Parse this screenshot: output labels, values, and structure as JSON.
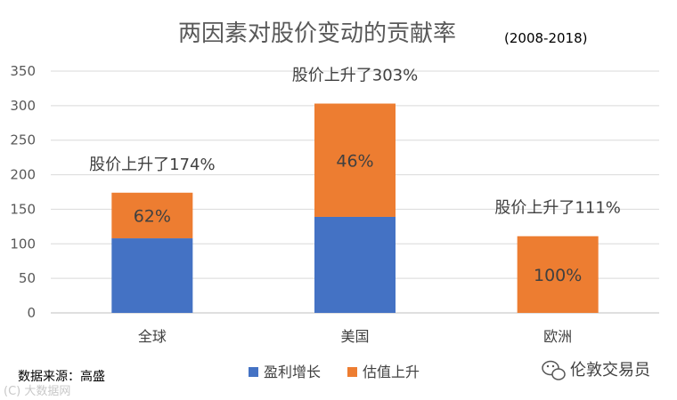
{
  "chart_data": {
    "type": "bar",
    "stacked": true,
    "title": "两因素对股价变动的贡献率",
    "subtitle": "(2008-2018)",
    "categories": [
      "全球",
      "美国",
      "欧洲"
    ],
    "series": [
      {
        "name": "盈利增长",
        "color": "#4472C4",
        "values": [
          108,
          139,
          0
        ]
      },
      {
        "name": "估值上升",
        "color": "#ED7D31",
        "values": [
          66,
          164,
          111
        ]
      }
    ],
    "segment_labels": [
      "62%",
      "46%",
      "100%"
    ],
    "annotations": [
      "股价上升了174%",
      "股价上升了303%",
      "股价上升了111%"
    ],
    "ylim": [
      0,
      350
    ],
    "yticks": [
      0,
      50,
      100,
      150,
      200,
      250,
      300,
      350
    ],
    "grid": true,
    "legend_position": "bottom"
  },
  "source": "数据来源：高盛",
  "watermark": "伦敦交易员",
  "watermark_faint": "(C) 大数据网"
}
